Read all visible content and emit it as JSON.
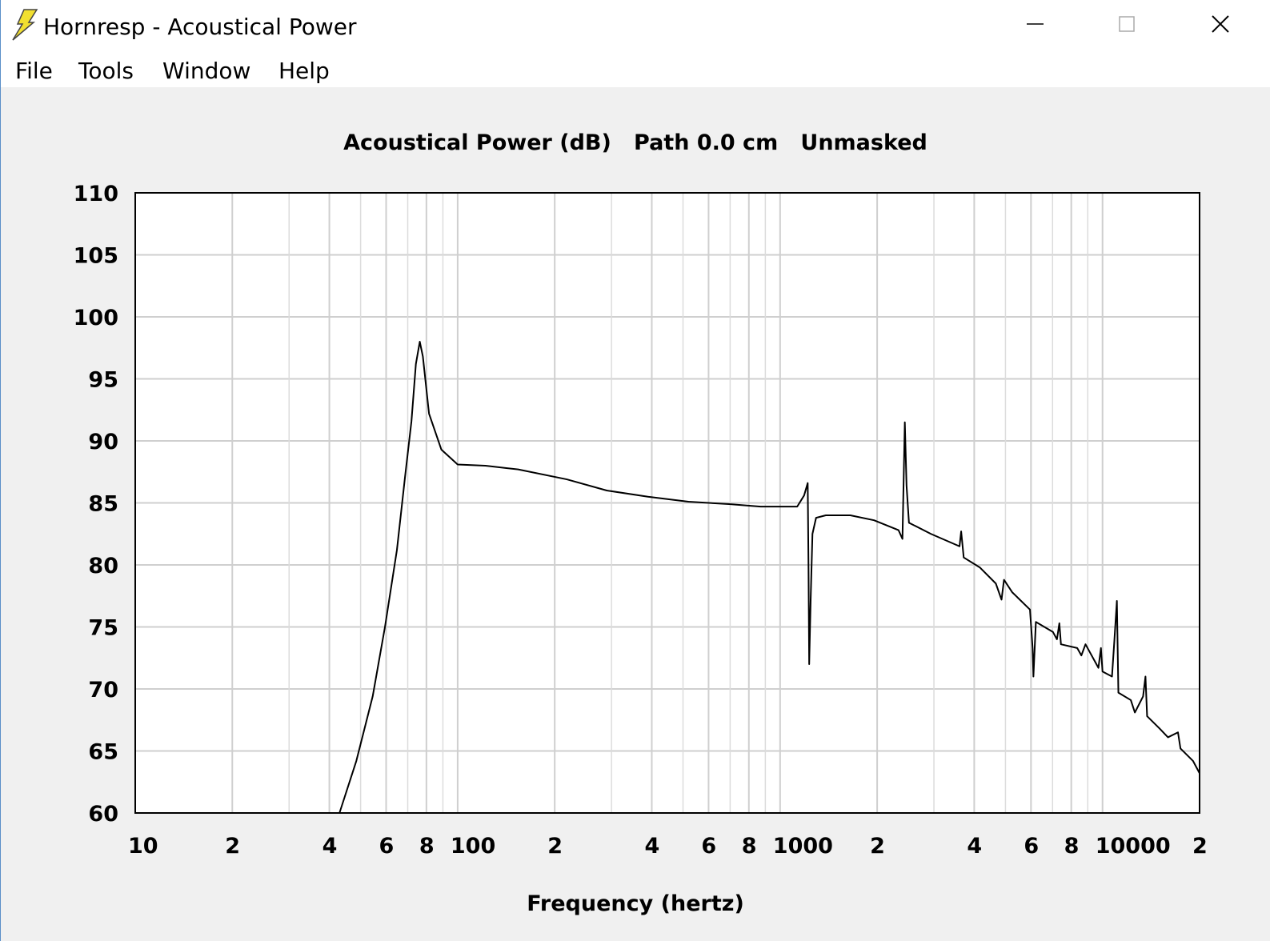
{
  "window": {
    "title": "Hornresp - Acoustical Power",
    "menu": [
      "File",
      "Tools",
      "Window",
      "Help"
    ]
  },
  "chart_data": {
    "type": "line",
    "title": "Acoustical Power (dB)   Path 0.0 cm   Unmasked",
    "x_label": "Frequency (hertz)",
    "xscale": "log",
    "grid": true,
    "color": "#000000",
    "xlim": [
      10,
      20000
    ],
    "ylim": [
      60,
      110
    ],
    "xticks": [
      10,
      {
        "value": 20,
        "label": "2"
      },
      {
        "value": 40,
        "label": "4"
      },
      {
        "value": 60,
        "label": "6"
      },
      {
        "value": 80,
        "label": "8"
      },
      100,
      {
        "value": 200,
        "label": "2"
      },
      {
        "value": 400,
        "label": "4"
      },
      {
        "value": 600,
        "label": "6"
      },
      {
        "value": 800,
        "label": "8"
      },
      1000,
      {
        "value": 2000,
        "label": "2"
      },
      {
        "value": 4000,
        "label": "4"
      },
      {
        "value": 6000,
        "label": "6"
      },
      {
        "value": 8000,
        "label": "8"
      },
      10000,
      {
        "value": 20000,
        "label": "2"
      }
    ],
    "xminor_ticks": [
      30,
      50,
      70,
      90,
      300,
      500,
      700,
      900,
      3000,
      5000,
      7000,
      9000
    ],
    "yticks": [
      60,
      65,
      70,
      75,
      80,
      85,
      90,
      95,
      100,
      105,
      110
    ],
    "x": [
      43,
      48.5,
      54.5,
      59.5,
      64.8,
      68.6,
      71.9,
      74.2,
      76.3,
      78,
      81.5,
      89,
      100,
      122,
      154,
      218,
      290,
      389,
      520,
      695,
      870,
      1130,
      1187,
      1218,
      1225,
      1231,
      1244,
      1260,
      1293,
      1386,
      1651,
      1956,
      2330,
      2396,
      2437,
      2467,
      2510,
      2937,
      3602,
      3644,
      3711,
      4162,
      4668,
      4862,
      4948,
      5245,
      5956,
      6070,
      6105,
      6213,
      7015,
      7222,
      7347,
      7432,
      8347,
      8598,
      8856,
      9712,
      9887,
      10000,
      10700,
      10890,
      11080,
      11200,
      12240,
      12600,
      13360,
      13590,
      13750,
      15040,
      15960,
      17140,
      17450,
      19080,
      20000
    ],
    "values": [
      60,
      64.2,
      69.4,
      75,
      81.2,
      87,
      91.6,
      96.2,
      98,
      96.8,
      92.2,
      89.3,
      88.1,
      88,
      87.7,
      86.9,
      86,
      85.5,
      85.1,
      84.9,
      84.7,
      84.7,
      85.6,
      86.6,
      79.8,
      72,
      77.2,
      82.5,
      83.8,
      84,
      84,
      83.6,
      82.8,
      82.1,
      91.5,
      86.4,
      83.4,
      82.5,
      81.5,
      82.7,
      80.6,
      79.8,
      78.5,
      77.2,
      78.8,
      77.8,
      76.4,
      73.3,
      71,
      75.4,
      74.6,
      74,
      75.3,
      73.6,
      73.3,
      72.7,
      73.6,
      71.7,
      73.3,
      71.4,
      71,
      74,
      77.1,
      69.7,
      69.1,
      68.1,
      69.4,
      71,
      67.8,
      66.8,
      66.1,
      66.5,
      65.2,
      64.2,
      63.2
    ]
  }
}
